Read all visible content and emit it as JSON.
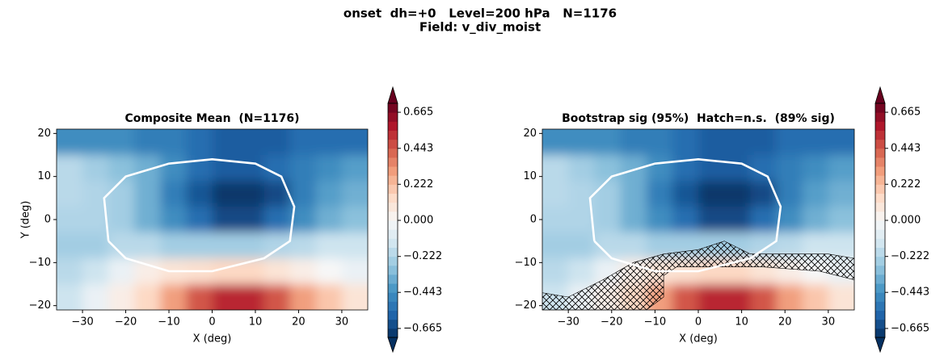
{
  "title": "onset  dh=+0   Level=200 hPa   N=1176",
  "subtitle": "Field: v_div_moist",
  "chart_data": [
    {
      "type": "contour",
      "title": "Composite Mean  (N=1176)",
      "x_label": "X (deg)",
      "y_label": "Y (deg)",
      "x": [
        -33,
        -27,
        -21,
        -15,
        -9,
        -3,
        3,
        9,
        15,
        21,
        27,
        33
      ],
      "y": [
        18,
        12,
        6,
        0,
        -6,
        -12,
        -18
      ],
      "z": [
        [
          -0.45,
          -0.45,
          -0.45,
          -0.5,
          -0.5,
          -0.55,
          -0.6,
          -0.6,
          -0.6,
          -0.55,
          -0.55,
          -0.55
        ],
        [
          -0.2,
          -0.25,
          -0.3,
          -0.35,
          -0.45,
          -0.55,
          -0.6,
          -0.6,
          -0.55,
          -0.5,
          -0.45,
          -0.4
        ],
        [
          -0.2,
          -0.22,
          -0.25,
          -0.35,
          -0.5,
          -0.62,
          -0.7,
          -0.7,
          -0.65,
          -0.5,
          -0.4,
          -0.35
        ],
        [
          -0.22,
          -0.22,
          -0.25,
          -0.35,
          -0.45,
          -0.55,
          -0.65,
          -0.65,
          -0.55,
          -0.45,
          -0.35,
          -0.3
        ],
        [
          -0.25,
          -0.25,
          -0.2,
          -0.2,
          -0.25,
          -0.25,
          -0.25,
          -0.25,
          -0.22,
          -0.2,
          -0.15,
          -0.15
        ],
        [
          -0.2,
          -0.15,
          -0.05,
          0.05,
          0.1,
          0.12,
          0.15,
          0.15,
          0.1,
          0.05,
          0.0,
          -0.05
        ],
        [
          -0.15,
          -0.05,
          0.05,
          0.15,
          0.3,
          0.45,
          0.55,
          0.55,
          0.45,
          0.3,
          0.2,
          0.1
        ]
      ],
      "xlim": [
        -36,
        36
      ],
      "ylim": [
        -21,
        21
      ],
      "xticks": [
        {
          "value": -30,
          "label": "−30"
        },
        {
          "value": -20,
          "label": "−20"
        },
        {
          "value": -10,
          "label": "−10"
        },
        0,
        10,
        20,
        30
      ],
      "yticks": [
        {
          "value": -20,
          "label": "−20"
        },
        {
          "value": -10,
          "label": "−10"
        },
        0,
        10,
        20
      ],
      "clim": [
        -0.72,
        0.72
      ],
      "cticks": [
        {
          "value": -0.665,
          "label": "−0.665"
        },
        {
          "value": -0.443,
          "label": "−0.443"
        },
        {
          "value": -0.222,
          "label": "−0.222"
        },
        {
          "value": 0,
          "label": "0.000"
        },
        0.222,
        0.443,
        0.665
      ],
      "colormap": "RdBu_r",
      "hatch": false
    },
    {
      "type": "contour",
      "title": "Bootstrap sig (95%)  Hatch=n.s.  (89% sig)",
      "x_label": "X (deg)",
      "x": [
        -33,
        -27,
        -21,
        -15,
        -9,
        -3,
        3,
        9,
        15,
        21,
        27,
        33
      ],
      "y": [
        18,
        12,
        6,
        0,
        -6,
        -12,
        -18
      ],
      "z": [
        [
          -0.45,
          -0.45,
          -0.45,
          -0.5,
          -0.5,
          -0.55,
          -0.6,
          -0.6,
          -0.6,
          -0.55,
          -0.55,
          -0.55
        ],
        [
          -0.2,
          -0.25,
          -0.3,
          -0.35,
          -0.45,
          -0.55,
          -0.6,
          -0.6,
          -0.55,
          -0.5,
          -0.45,
          -0.4
        ],
        [
          -0.2,
          -0.22,
          -0.25,
          -0.35,
          -0.5,
          -0.62,
          -0.7,
          -0.7,
          -0.65,
          -0.5,
          -0.4,
          -0.35
        ],
        [
          -0.22,
          -0.22,
          -0.25,
          -0.35,
          -0.45,
          -0.55,
          -0.65,
          -0.65,
          -0.55,
          -0.45,
          -0.35,
          -0.3
        ],
        [
          -0.25,
          -0.25,
          -0.2,
          -0.2,
          -0.25,
          -0.25,
          -0.25,
          -0.25,
          -0.22,
          -0.2,
          -0.15,
          -0.15
        ],
        [
          -0.2,
          -0.15,
          -0.05,
          0.05,
          0.1,
          0.12,
          0.15,
          0.15,
          0.1,
          0.05,
          0.0,
          -0.05
        ],
        [
          -0.15,
          -0.05,
          0.05,
          0.15,
          0.3,
          0.45,
          0.55,
          0.55,
          0.45,
          0.3,
          0.2,
          0.1
        ]
      ],
      "xlim": [
        -36,
        36
      ],
      "ylim": [
        -21,
        21
      ],
      "xticks": [
        {
          "value": -30,
          "label": "−30"
        },
        {
          "value": -20,
          "label": "−20"
        },
        {
          "value": -10,
          "label": "−10"
        },
        0,
        10,
        20,
        30
      ],
      "yticks": [
        {
          "value": -20,
          "label": "−20"
        },
        {
          "value": -10,
          "label": "−10"
        },
        0,
        10,
        20
      ],
      "clim": [
        -0.72,
        0.72
      ],
      "cticks": [
        {
          "value": -0.665,
          "label": "−0.665"
        },
        {
          "value": -0.443,
          "label": "−0.443"
        },
        {
          "value": -0.222,
          "label": "−0.222"
        },
        {
          "value": 0,
          "label": "0.000"
        },
        0.222,
        0.443,
        0.665
      ],
      "colormap": "RdBu_r",
      "hatch": true
    }
  ]
}
